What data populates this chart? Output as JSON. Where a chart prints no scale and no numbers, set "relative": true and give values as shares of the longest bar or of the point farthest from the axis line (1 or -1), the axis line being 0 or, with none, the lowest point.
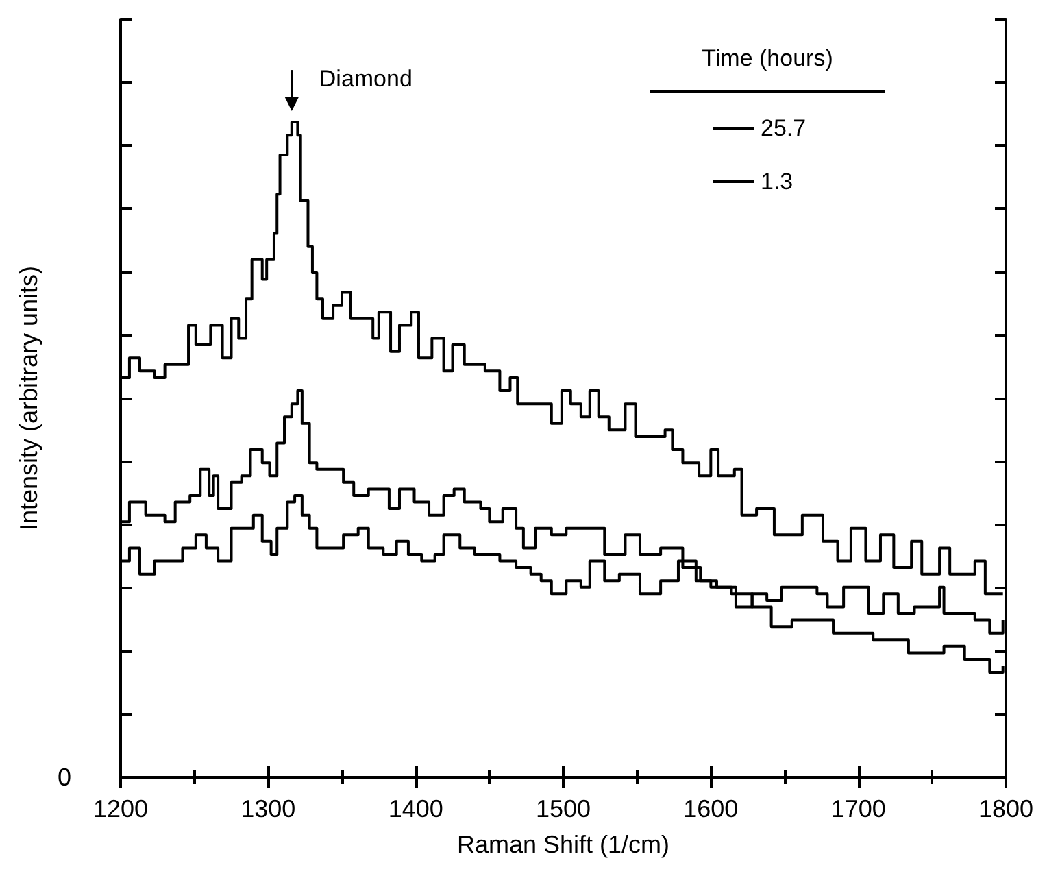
{
  "chart_data": {
    "type": "step",
    "xlabel": "Raman Shift (1/cm)",
    "ylabel": "Intensity (arbitrary units)",
    "relative": true,
    "xlim": [
      1200,
      1800
    ],
    "xticks": [
      1200,
      1300,
      1400,
      1500,
      1600,
      1700,
      1800
    ],
    "legend_title": "Time (hours)",
    "legend": "top right",
    "grid": false,
    "marker": "none",
    "line_style": "solid",
    "annotations": [
      "Diamond",
      "0"
    ],
    "series": [
      {
        "name": "25.7",
        "color": "#000000",
        "x": [
          1200,
          1206,
          1213,
          1223,
          1230,
          1242,
          1246,
          1251,
          1261,
          1269,
          1275,
          1280,
          1285,
          1289,
          1296,
          1299,
          1304,
          1306,
          1308,
          1313,
          1316,
          1320,
          1322,
          1327,
          1330,
          1333,
          1337,
          1344,
          1350,
          1356,
          1364,
          1371,
          1375,
          1383,
          1389,
          1397,
          1402,
          1411,
          1419,
          1425,
          1433,
          1447,
          1457,
          1464,
          1469,
          1478,
          1492,
          1499,
          1505,
          1512,
          1518,
          1524,
          1531,
          1542,
          1549,
          1569,
          1574,
          1581,
          1592,
          1600,
          1605,
          1616,
          1621,
          1631,
          1643,
          1662,
          1676,
          1686,
          1695,
          1705,
          1715,
          1724,
          1736,
          1743,
          1755,
          1762,
          1779,
          1786,
          1798
        ],
        "values": [
          0.61,
          0.64,
          0.62,
          0.61,
          0.63,
          0.63,
          0.69,
          0.66,
          0.69,
          0.64,
          0.7,
          0.67,
          0.73,
          0.79,
          0.76,
          0.79,
          0.83,
          0.89,
          0.95,
          0.98,
          1.0,
          0.98,
          0.88,
          0.81,
          0.77,
          0.73,
          0.7,
          0.72,
          0.74,
          0.7,
          0.7,
          0.67,
          0.71,
          0.65,
          0.69,
          0.71,
          0.64,
          0.67,
          0.62,
          0.66,
          0.63,
          0.62,
          0.59,
          0.61,
          0.57,
          0.57,
          0.54,
          0.59,
          0.57,
          0.55,
          0.59,
          0.55,
          0.53,
          0.57,
          0.52,
          0.53,
          0.5,
          0.48,
          0.46,
          0.5,
          0.46,
          0.47,
          0.4,
          0.41,
          0.37,
          0.4,
          0.36,
          0.33,
          0.38,
          0.33,
          0.37,
          0.32,
          0.36,
          0.31,
          0.35,
          0.31,
          0.33,
          0.28,
          0.28
        ]
      },
      {
        "color": "#000000",
        "x": [
          1200,
          1206,
          1217,
          1230,
          1237,
          1247,
          1254,
          1260,
          1263,
          1266,
          1275,
          1282,
          1288,
          1296,
          1301,
          1306,
          1311,
          1316,
          1320,
          1323,
          1328,
          1333,
          1340,
          1351,
          1358,
          1368,
          1382,
          1389,
          1399,
          1409,
          1419,
          1426,
          1433,
          1444,
          1450,
          1459,
          1468,
          1473,
          1481,
          1492,
          1502,
          1518,
          1528,
          1542,
          1552,
          1566,
          1578,
          1581,
          1593,
          1604,
          1617,
          1628,
          1638,
          1648,
          1662,
          1672,
          1679,
          1690,
          1700,
          1707,
          1717,
          1727,
          1738,
          1755,
          1758,
          1779,
          1789,
          1798
        ],
        "values": [
          0.39,
          0.42,
          0.4,
          0.39,
          0.42,
          0.43,
          0.47,
          0.43,
          0.46,
          0.41,
          0.45,
          0.46,
          0.5,
          0.48,
          0.46,
          0.51,
          0.55,
          0.57,
          0.59,
          0.54,
          0.48,
          0.47,
          0.47,
          0.45,
          0.43,
          0.44,
          0.41,
          0.44,
          0.42,
          0.4,
          0.43,
          0.44,
          0.42,
          0.41,
          0.39,
          0.41,
          0.38,
          0.35,
          0.38,
          0.37,
          0.38,
          0.38,
          0.34,
          0.37,
          0.34,
          0.35,
          0.35,
          0.32,
          0.3,
          0.29,
          0.26,
          0.28,
          0.27,
          0.29,
          0.29,
          0.28,
          0.26,
          0.29,
          0.29,
          0.25,
          0.28,
          0.25,
          0.26,
          0.29,
          0.25,
          0.24,
          0.22,
          0.24
        ]
      },
      {
        "name": "1.3",
        "color": "#000000",
        "x": [
          1200,
          1206,
          1213,
          1223,
          1234,
          1242,
          1251,
          1258,
          1266,
          1275,
          1282,
          1290,
          1296,
          1302,
          1306,
          1313,
          1318,
          1323,
          1328,
          1333,
          1340,
          1351,
          1361,
          1368,
          1378,
          1387,
          1395,
          1404,
          1413,
          1419,
          1430,
          1440,
          1449,
          1457,
          1468,
          1478,
          1485,
          1492,
          1502,
          1512,
          1518,
          1528,
          1538,
          1552,
          1566,
          1578,
          1590,
          1600,
          1614,
          1628,
          1641,
          1655,
          1669,
          1683,
          1696,
          1710,
          1724,
          1734,
          1745,
          1758,
          1772,
          1789,
          1798
        ],
        "values": [
          0.33,
          0.35,
          0.31,
          0.33,
          0.33,
          0.35,
          0.37,
          0.35,
          0.33,
          0.38,
          0.38,
          0.4,
          0.36,
          0.34,
          0.38,
          0.42,
          0.43,
          0.4,
          0.38,
          0.35,
          0.35,
          0.37,
          0.38,
          0.35,
          0.34,
          0.36,
          0.34,
          0.33,
          0.34,
          0.37,
          0.35,
          0.34,
          0.34,
          0.33,
          0.32,
          0.31,
          0.3,
          0.28,
          0.3,
          0.29,
          0.33,
          0.3,
          0.31,
          0.28,
          0.3,
          0.33,
          0.3,
          0.29,
          0.28,
          0.26,
          0.23,
          0.24,
          0.24,
          0.22,
          0.22,
          0.21,
          0.21,
          0.19,
          0.19,
          0.2,
          0.18,
          0.16,
          0.17
        ]
      }
    ]
  }
}
